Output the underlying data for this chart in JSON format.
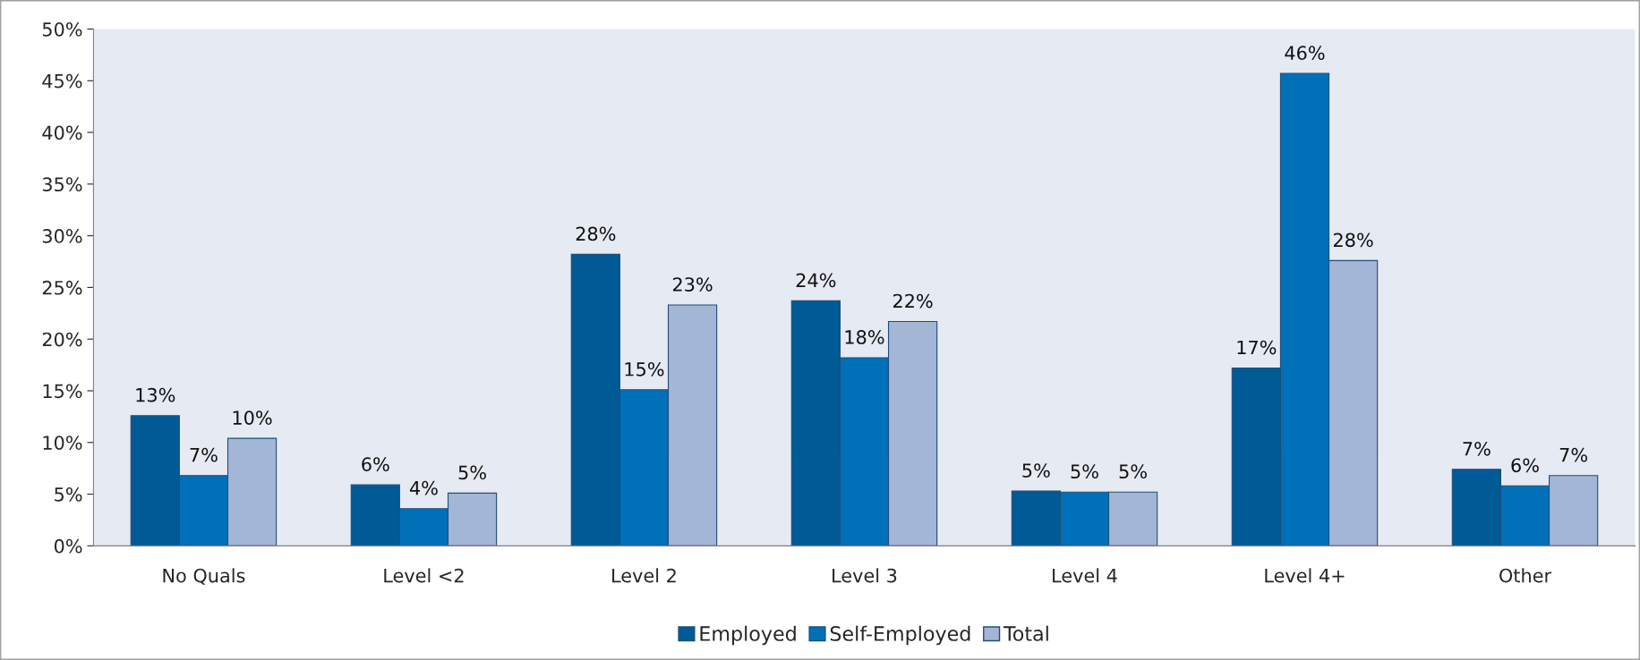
{
  "chart_data": {
    "type": "bar",
    "categories": [
      "No Quals",
      "Level <2",
      "Level 2",
      "Level 3",
      "Level 4",
      "Level 4+",
      "Other"
    ],
    "series": [
      {
        "name": "Employed",
        "color": "#005a96",
        "values": [
          12.6,
          5.9,
          28.2,
          23.7,
          5.3,
          17.2,
          7.4
        ],
        "value_labels": [
          "13%",
          "6%",
          "28%",
          "24%",
          "5%",
          "17%",
          "7%"
        ]
      },
      {
        "name": "Self-Employed",
        "color": "#0070b8",
        "values": [
          6.8,
          3.6,
          15.1,
          18.2,
          5.2,
          45.7,
          5.8
        ],
        "value_labels": [
          "7%",
          "4%",
          "15%",
          "18%",
          "5%",
          "46%",
          "6%"
        ]
      },
      {
        "name": "Total",
        "color": "#a3b6d6",
        "values": [
          10.4,
          5.1,
          23.3,
          21.7,
          5.2,
          27.6,
          6.8
        ],
        "value_labels": [
          "10%",
          "5%",
          "23%",
          "22%",
          "5%",
          "28%",
          "7%"
        ]
      }
    ],
    "ylim": [
      0,
      50
    ],
    "yticks": [
      {
        "value": 0,
        "label": "0%"
      },
      {
        "value": 5,
        "label": "5%"
      },
      {
        "value": 10,
        "label": "10%"
      },
      {
        "value": 15,
        "label": "15%"
      },
      {
        "value": 20,
        "label": "20%"
      },
      {
        "value": 25,
        "label": "25%"
      },
      {
        "value": 30,
        "label": "30%"
      },
      {
        "value": 35,
        "label": "35%"
      },
      {
        "value": 40,
        "label": "40%"
      },
      {
        "value": 45,
        "label": "45%"
      },
      {
        "value": 50,
        "label": "50%"
      }
    ],
    "grid": false,
    "legend": "bottom"
  }
}
